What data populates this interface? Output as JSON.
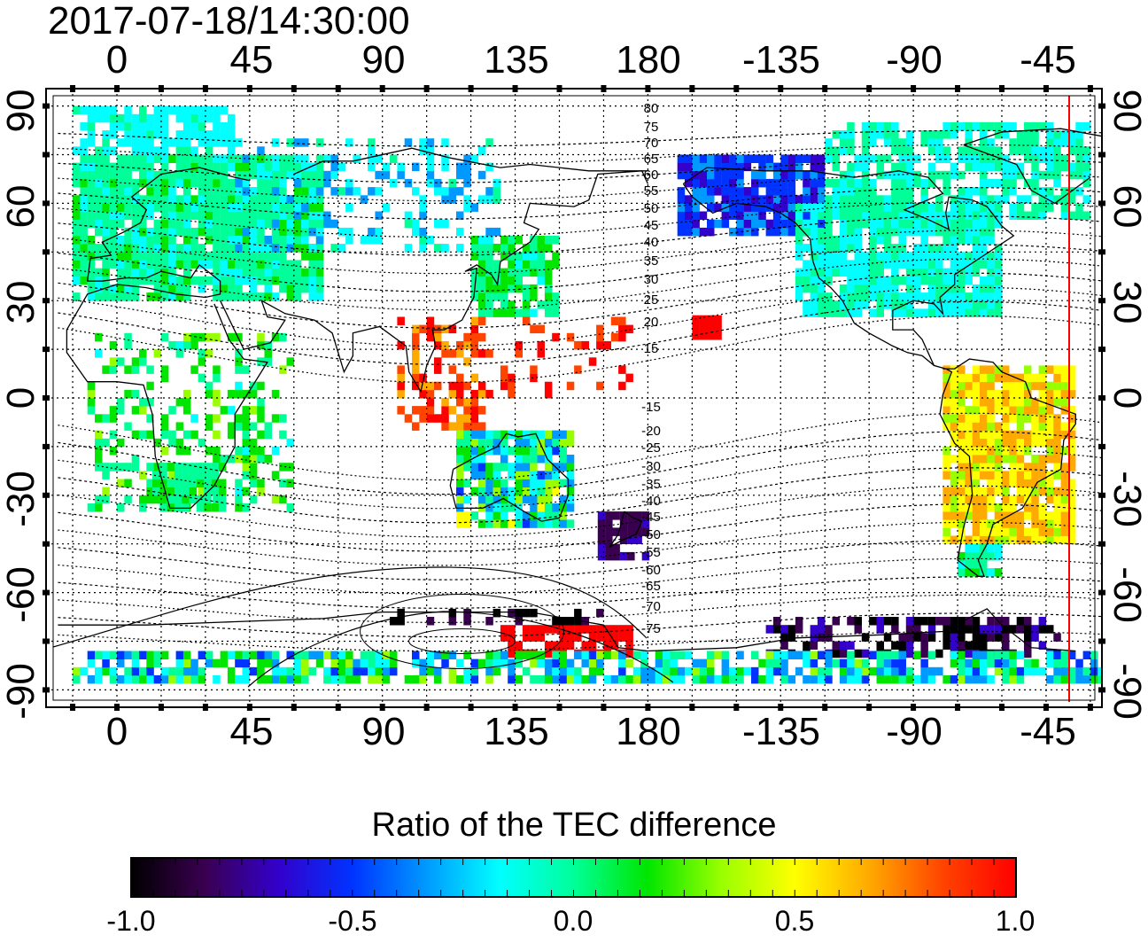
{
  "timestamp": "2017-07-18/14:30:00",
  "longitude_labels_top": [
    "0",
    "45",
    "90",
    "135",
    "180",
    "-135",
    "-90",
    "-45"
  ],
  "longitude_labels_bottom": [
    "0",
    "45",
    "90",
    "135",
    "180",
    "-135",
    "-90",
    "-45"
  ],
  "latitude_labels_left": [
    "90",
    "60",
    "30",
    "0",
    "-30",
    "-60",
    "-90"
  ],
  "latitude_labels_right": [
    "90",
    "60",
    "30",
    "0",
    "-30",
    "-60",
    "-90"
  ],
  "contour_labels": [
    "80",
    "75",
    "70",
    "65",
    "60",
    "55",
    "50",
    "45",
    "40",
    "35",
    "30",
    "25",
    "20",
    "15",
    "-15",
    "-20",
    "-25",
    "-30",
    "-35",
    "-40",
    "-45",
    "-50",
    "-55",
    "-60",
    "-65",
    "-70",
    "-75"
  ],
  "colorbar": {
    "title": "Ratio of the TEC difference",
    "tick_labels": [
      "-1.0",
      "-0.5",
      "0.0",
      "0.5",
      "1.0"
    ],
    "range": [
      -1.0,
      1.0
    ],
    "colors": [
      "#000000",
      "#3a0050",
      "#3300cc",
      "#0033ff",
      "#0099ff",
      "#00ffff",
      "#00ff99",
      "#00e600",
      "#99ff00",
      "#ffff00",
      "#ffaa00",
      "#ff4400",
      "#ff0000"
    ]
  },
  "map": {
    "projection": "equirectangular",
    "lon_range": [
      -20,
      340
    ],
    "lat_range": [
      -90,
      90
    ],
    "marker_longitude": -40,
    "marker_color": "#ff0000"
  }
}
